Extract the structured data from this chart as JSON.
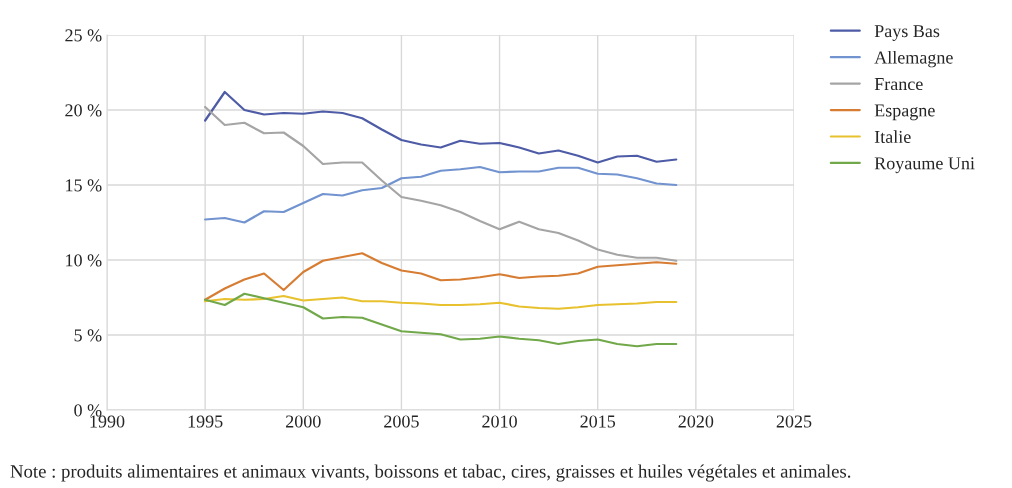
{
  "chart_data": {
    "type": "line",
    "x": [
      1995,
      1996,
      1997,
      1998,
      1999,
      2000,
      2001,
      2002,
      2003,
      2004,
      2005,
      2006,
      2007,
      2008,
      2009,
      2010,
      2011,
      2012,
      2013,
      2014,
      2015,
      2016,
      2017,
      2018,
      2019
    ],
    "series": [
      {
        "name": "Pays Bas",
        "color": "#4e5ba6",
        "values": [
          19.3,
          21.2,
          20.0,
          19.7,
          19.8,
          19.75,
          19.9,
          19.8,
          19.45,
          18.7,
          18.0,
          17.7,
          17.5,
          17.95,
          17.75,
          17.8,
          17.5,
          17.1,
          17.3,
          16.95,
          16.5,
          16.9,
          16.95,
          16.55,
          16.7
        ]
      },
      {
        "name": "Allemagne",
        "color": "#7193cf",
        "values": [
          12.7,
          12.8,
          12.5,
          13.25,
          13.2,
          13.8,
          14.4,
          14.3,
          14.65,
          14.8,
          15.45,
          15.55,
          15.95,
          16.05,
          16.2,
          15.85,
          15.9,
          15.9,
          16.15,
          16.15,
          15.75,
          15.7,
          15.45,
          15.1,
          15.0
        ]
      },
      {
        "name": "France",
        "color": "#a5a5a5",
        "values": [
          20.2,
          19.0,
          19.15,
          18.45,
          18.5,
          17.6,
          16.4,
          16.5,
          16.5,
          15.3,
          14.2,
          13.95,
          13.65,
          13.2,
          12.6,
          12.05,
          12.55,
          12.05,
          11.8,
          11.3,
          10.7,
          10.35,
          10.15,
          10.15,
          9.95
        ]
      },
      {
        "name": "Espagne",
        "color": "#d77d33",
        "values": [
          7.35,
          8.1,
          8.7,
          9.1,
          8.0,
          9.2,
          9.95,
          10.2,
          10.45,
          9.8,
          9.3,
          9.1,
          8.65,
          8.7,
          8.85,
          9.05,
          8.8,
          8.9,
          8.95,
          9.1,
          9.55,
          9.65,
          9.75,
          9.85,
          9.75
        ]
      },
      {
        "name": "Italie",
        "color": "#e8c12e",
        "values": [
          7.25,
          7.4,
          7.35,
          7.4,
          7.6,
          7.3,
          7.4,
          7.5,
          7.25,
          7.25,
          7.15,
          7.1,
          7.0,
          7.0,
          7.05,
          7.15,
          6.9,
          6.8,
          6.75,
          6.85,
          7.0,
          7.05,
          7.1,
          7.2,
          7.2
        ]
      },
      {
        "name": "Royaume Uni",
        "color": "#71a84a",
        "values": [
          7.35,
          7.0,
          7.75,
          7.45,
          7.15,
          6.85,
          6.1,
          6.2,
          6.15,
          5.7,
          5.25,
          5.15,
          5.05,
          4.7,
          4.75,
          4.9,
          4.75,
          4.65,
          4.4,
          4.6,
          4.7,
          4.4,
          4.25,
          4.4,
          4.4
        ]
      }
    ],
    "xlim": [
      1990,
      2025
    ],
    "xticks": [
      1990,
      1995,
      2000,
      2005,
      2010,
      2015,
      2020,
      2025
    ],
    "ylim": [
      0,
      25
    ],
    "yticks": [
      {
        "value": 0,
        "label": "0 %"
      },
      {
        "value": 5,
        "label": "5 %"
      },
      {
        "value": 10,
        "label": "10 %"
      },
      {
        "value": 15,
        "label": "15 %"
      },
      {
        "value": 20,
        "label": "20 %"
      },
      {
        "value": 25,
        "label": "25 %"
      }
    ],
    "grid": true,
    "legend": "right",
    "marker": "none",
    "line_style": "solid",
    "annotations": [
      "Note : produits alimentaires et animaux vivants, boissons et tabac, cires, graisses et huiles végétales et animales."
    ]
  }
}
